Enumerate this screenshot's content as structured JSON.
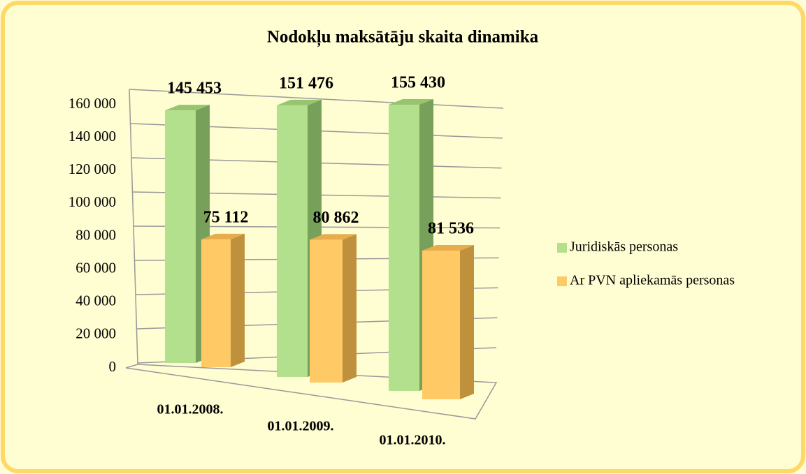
{
  "chart_data": {
    "type": "bar3d",
    "title": "Nodokļu maksātāju skaita dinamika",
    "categories": [
      "01.01.2008.",
      "01.01.2009.",
      "01.01.2010."
    ],
    "series": [
      {
        "name": "Juridiskās personas",
        "color": "#b3e08c",
        "values": [
          145453,
          151476,
          155430
        ],
        "value_labels": [
          "145 453",
          "151 476",
          "155 430"
        ]
      },
      {
        "name": "Ar PVN apliekamās personas",
        "color": "#ffca66",
        "values": [
          75112,
          80862,
          81536
        ],
        "value_labels": [
          "75 112",
          "80 862",
          "81 536"
        ]
      }
    ],
    "ylim": [
      0,
      160000
    ],
    "yticks": [
      0,
      {
        "value": 20000,
        "label": "20 000"
      },
      {
        "value": 40000,
        "label": "40 000"
      },
      {
        "value": 60000,
        "label": "60 000"
      },
      {
        "value": 80000,
        "label": "80 000"
      },
      {
        "value": 100000,
        "label": "100 000"
      },
      {
        "value": 120000,
        "label": "120 000"
      },
      {
        "value": 140000,
        "label": "140 000"
      },
      {
        "value": 160000,
        "label": "160 000"
      }
    ],
    "grid": true,
    "legend": "right"
  }
}
